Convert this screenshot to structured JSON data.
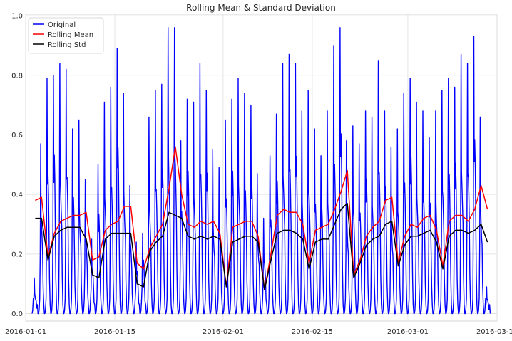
{
  "chart_data": {
    "type": "line",
    "title": "Rolling Mean & Standard Deviation",
    "xlabel": "",
    "ylabel": "",
    "x_range": [
      "2016-01-01",
      "2016-03-15"
    ],
    "ylim": [
      -0.025,
      1.005
    ],
    "x_tick_labels": [
      "2016-01-01",
      "2016-01-15",
      "2016-02-01",
      "2016-02-15",
      "2016-03-01",
      "2016-03-15"
    ],
    "y_tick_labels": [
      "0.0",
      "0.2",
      "0.4",
      "0.6",
      "0.8",
      "1.0"
    ],
    "grid": true,
    "legend_position": "upper-left",
    "series": [
      {
        "name": "Original",
        "color": "#0000ff",
        "note_style": "daily cycle",
        "daily_peaks": [
          [
            "2016-01-02",
            0.12
          ],
          [
            "2016-01-03",
            0.57
          ],
          [
            "2016-01-04",
            0.79
          ],
          [
            "2016-01-05",
            0.8
          ],
          [
            "2016-01-06",
            0.84
          ],
          [
            "2016-01-07",
            0.82
          ],
          [
            "2016-01-08",
            0.62
          ],
          [
            "2016-01-09",
            0.65
          ],
          [
            "2016-01-10",
            0.45
          ],
          [
            "2016-01-11",
            0.25
          ],
          [
            "2016-01-12",
            0.5
          ],
          [
            "2016-01-13",
            0.71
          ],
          [
            "2016-01-14",
            0.76
          ],
          [
            "2016-01-15",
            0.89
          ],
          [
            "2016-01-16",
            0.74
          ],
          [
            "2016-01-17",
            0.43
          ],
          [
            "2016-01-18",
            0.24
          ],
          [
            "2016-01-19",
            0.27
          ],
          [
            "2016-01-20",
            0.66
          ],
          [
            "2016-01-21",
            0.75
          ],
          [
            "2016-01-22",
            0.77
          ],
          [
            "2016-01-23",
            0.96
          ],
          [
            "2016-01-24",
            0.96
          ],
          [
            "2016-01-25",
            0.58
          ],
          [
            "2016-01-26",
            0.72
          ],
          [
            "2016-01-27",
            0.71
          ],
          [
            "2016-01-28",
            0.84
          ],
          [
            "2016-01-29",
            0.75
          ],
          [
            "2016-01-30",
            0.55
          ],
          [
            "2016-01-31",
            0.49
          ],
          [
            "2016-02-01",
            0.65
          ],
          [
            "2016-02-02",
            0.72
          ],
          [
            "2016-02-03",
            0.79
          ],
          [
            "2016-02-04",
            0.74
          ],
          [
            "2016-02-05",
            0.7
          ],
          [
            "2016-02-06",
            0.47
          ],
          [
            "2016-02-07",
            0.32
          ],
          [
            "2016-02-08",
            0.53
          ],
          [
            "2016-02-09",
            0.67
          ],
          [
            "2016-02-10",
            0.84
          ],
          [
            "2016-02-11",
            0.87
          ],
          [
            "2016-02-12",
            0.84
          ],
          [
            "2016-02-13",
            0.68
          ],
          [
            "2016-02-14",
            0.75
          ],
          [
            "2016-02-15",
            0.62
          ],
          [
            "2016-02-16",
            0.53
          ],
          [
            "2016-02-17",
            0.68
          ],
          [
            "2016-02-18",
            0.9
          ],
          [
            "2016-02-19",
            0.96
          ],
          [
            "2016-02-20",
            0.58
          ],
          [
            "2016-02-21",
            0.63
          ],
          [
            "2016-02-22",
            0.57
          ],
          [
            "2016-02-23",
            0.68
          ],
          [
            "2016-02-24",
            0.66
          ],
          [
            "2016-02-25",
            0.85
          ],
          [
            "2016-02-26",
            0.68
          ],
          [
            "2016-02-27",
            0.56
          ],
          [
            "2016-02-28",
            0.62
          ],
          [
            "2016-02-29",
            0.74
          ],
          [
            "2016-03-01",
            0.79
          ],
          [
            "2016-03-02",
            0.71
          ],
          [
            "2016-03-03",
            0.68
          ],
          [
            "2016-03-04",
            0.59
          ],
          [
            "2016-03-05",
            0.68
          ],
          [
            "2016-03-06",
            0.75
          ],
          [
            "2016-03-07",
            0.79
          ],
          [
            "2016-03-08",
            0.76
          ],
          [
            "2016-03-09",
            0.87
          ],
          [
            "2016-03-10",
            0.84
          ],
          [
            "2016-03-11",
            0.93
          ],
          [
            "2016-03-12",
            0.66
          ],
          [
            "2016-03-13",
            0.09
          ]
        ]
      },
      {
        "name": "Rolling Mean",
        "color": "#ff0000",
        "points": [
          [
            "2016-01-02",
            0.38
          ],
          [
            "2016-01-03",
            0.39
          ],
          [
            "2016-01-04",
            0.19
          ],
          [
            "2016-01-05",
            0.27
          ],
          [
            "2016-01-06",
            0.31
          ],
          [
            "2016-01-07",
            0.32
          ],
          [
            "2016-01-08",
            0.33
          ],
          [
            "2016-01-09",
            0.33
          ],
          [
            "2016-01-10",
            0.34
          ],
          [
            "2016-01-11",
            0.18
          ],
          [
            "2016-01-12",
            0.19
          ],
          [
            "2016-01-13",
            0.28
          ],
          [
            "2016-01-14",
            0.3
          ],
          [
            "2016-01-15",
            0.31
          ],
          [
            "2016-01-16",
            0.36
          ],
          [
            "2016-01-17",
            0.36
          ],
          [
            "2016-01-18",
            0.17
          ],
          [
            "2016-01-19",
            0.15
          ],
          [
            "2016-01-20",
            0.22
          ],
          [
            "2016-01-21",
            0.26
          ],
          [
            "2016-01-22",
            0.3
          ],
          [
            "2016-01-23",
            0.42
          ],
          [
            "2016-01-24",
            0.56
          ],
          [
            "2016-01-25",
            0.4
          ],
          [
            "2016-01-26",
            0.3
          ],
          [
            "2016-01-27",
            0.29
          ],
          [
            "2016-01-28",
            0.31
          ],
          [
            "2016-01-29",
            0.3
          ],
          [
            "2016-01-30",
            0.31
          ],
          [
            "2016-01-31",
            0.27
          ],
          [
            "2016-02-01",
            0.09
          ],
          [
            "2016-02-02",
            0.29
          ],
          [
            "2016-02-03",
            0.3
          ],
          [
            "2016-02-04",
            0.31
          ],
          [
            "2016-02-05",
            0.31
          ],
          [
            "2016-02-06",
            0.26
          ],
          [
            "2016-02-07",
            0.08
          ],
          [
            "2016-02-08",
            0.2
          ],
          [
            "2016-02-09",
            0.33
          ],
          [
            "2016-02-10",
            0.35
          ],
          [
            "2016-02-11",
            0.34
          ],
          [
            "2016-02-12",
            0.34
          ],
          [
            "2016-02-13",
            0.3
          ],
          [
            "2016-02-14",
            0.17
          ],
          [
            "2016-02-15",
            0.28
          ],
          [
            "2016-02-16",
            0.29
          ],
          [
            "2016-02-17",
            0.3
          ],
          [
            "2016-02-18",
            0.35
          ],
          [
            "2016-02-19",
            0.41
          ],
          [
            "2016-02-20",
            0.48
          ],
          [
            "2016-02-21",
            0.13
          ],
          [
            "2016-02-22",
            0.18
          ],
          [
            "2016-02-23",
            0.26
          ],
          [
            "2016-02-24",
            0.29
          ],
          [
            "2016-02-25",
            0.31
          ],
          [
            "2016-02-26",
            0.38
          ],
          [
            "2016-02-27",
            0.39
          ],
          [
            "2016-02-28",
            0.17
          ],
          [
            "2016-02-29",
            0.26
          ],
          [
            "2016-03-01",
            0.3
          ],
          [
            "2016-03-02",
            0.29
          ],
          [
            "2016-03-03",
            0.32
          ],
          [
            "2016-03-04",
            0.33
          ],
          [
            "2016-03-05",
            0.28
          ],
          [
            "2016-03-06",
            0.16
          ],
          [
            "2016-03-07",
            0.31
          ],
          [
            "2016-03-08",
            0.33
          ],
          [
            "2016-03-09",
            0.33
          ],
          [
            "2016-03-10",
            0.31
          ],
          [
            "2016-03-11",
            0.35
          ],
          [
            "2016-03-12",
            0.43
          ],
          [
            "2016-03-13",
            0.35
          ]
        ]
      },
      {
        "name": "Rolling Std",
        "color": "#000000",
        "points": [
          [
            "2016-01-02",
            0.32
          ],
          [
            "2016-01-03",
            0.32
          ],
          [
            "2016-01-04",
            0.18
          ],
          [
            "2016-01-05",
            0.26
          ],
          [
            "2016-01-06",
            0.28
          ],
          [
            "2016-01-07",
            0.29
          ],
          [
            "2016-01-08",
            0.29
          ],
          [
            "2016-01-09",
            0.29
          ],
          [
            "2016-01-10",
            0.25
          ],
          [
            "2016-01-11",
            0.13
          ],
          [
            "2016-01-12",
            0.12
          ],
          [
            "2016-01-13",
            0.25
          ],
          [
            "2016-01-14",
            0.27
          ],
          [
            "2016-01-15",
            0.27
          ],
          [
            "2016-01-16",
            0.27
          ],
          [
            "2016-01-17",
            0.27
          ],
          [
            "2016-01-18",
            0.1
          ],
          [
            "2016-01-19",
            0.09
          ],
          [
            "2016-01-20",
            0.21
          ],
          [
            "2016-01-21",
            0.24
          ],
          [
            "2016-01-22",
            0.26
          ],
          [
            "2016-01-23",
            0.34
          ],
          [
            "2016-01-24",
            0.33
          ],
          [
            "2016-01-25",
            0.32
          ],
          [
            "2016-01-26",
            0.26
          ],
          [
            "2016-01-27",
            0.25
          ],
          [
            "2016-01-28",
            0.26
          ],
          [
            "2016-01-29",
            0.25
          ],
          [
            "2016-01-30",
            0.26
          ],
          [
            "2016-01-31",
            0.25
          ],
          [
            "2016-02-01",
            0.09
          ],
          [
            "2016-02-02",
            0.24
          ],
          [
            "2016-02-03",
            0.25
          ],
          [
            "2016-02-04",
            0.26
          ],
          [
            "2016-02-05",
            0.26
          ],
          [
            "2016-02-06",
            0.24
          ],
          [
            "2016-02-07",
            0.08
          ],
          [
            "2016-02-08",
            0.18
          ],
          [
            "2016-02-09",
            0.27
          ],
          [
            "2016-02-10",
            0.28
          ],
          [
            "2016-02-11",
            0.28
          ],
          [
            "2016-02-12",
            0.27
          ],
          [
            "2016-02-13",
            0.25
          ],
          [
            "2016-02-14",
            0.15
          ],
          [
            "2016-02-15",
            0.24
          ],
          [
            "2016-02-16",
            0.25
          ],
          [
            "2016-02-17",
            0.25
          ],
          [
            "2016-02-18",
            0.3
          ],
          [
            "2016-02-19",
            0.35
          ],
          [
            "2016-02-20",
            0.37
          ],
          [
            "2016-02-21",
            0.12
          ],
          [
            "2016-02-22",
            0.17
          ],
          [
            "2016-02-23",
            0.23
          ],
          [
            "2016-02-24",
            0.25
          ],
          [
            "2016-02-25",
            0.26
          ],
          [
            "2016-02-26",
            0.3
          ],
          [
            "2016-02-27",
            0.31
          ],
          [
            "2016-02-28",
            0.16
          ],
          [
            "2016-02-29",
            0.23
          ],
          [
            "2016-03-01",
            0.26
          ],
          [
            "2016-03-02",
            0.26
          ],
          [
            "2016-03-03",
            0.27
          ],
          [
            "2016-03-04",
            0.28
          ],
          [
            "2016-03-05",
            0.24
          ],
          [
            "2016-03-06",
            0.15
          ],
          [
            "2016-03-07",
            0.26
          ],
          [
            "2016-03-08",
            0.28
          ],
          [
            "2016-03-09",
            0.28
          ],
          [
            "2016-03-10",
            0.27
          ],
          [
            "2016-03-11",
            0.28
          ],
          [
            "2016-03-12",
            0.3
          ],
          [
            "2016-03-13",
            0.24
          ]
        ]
      }
    ]
  }
}
